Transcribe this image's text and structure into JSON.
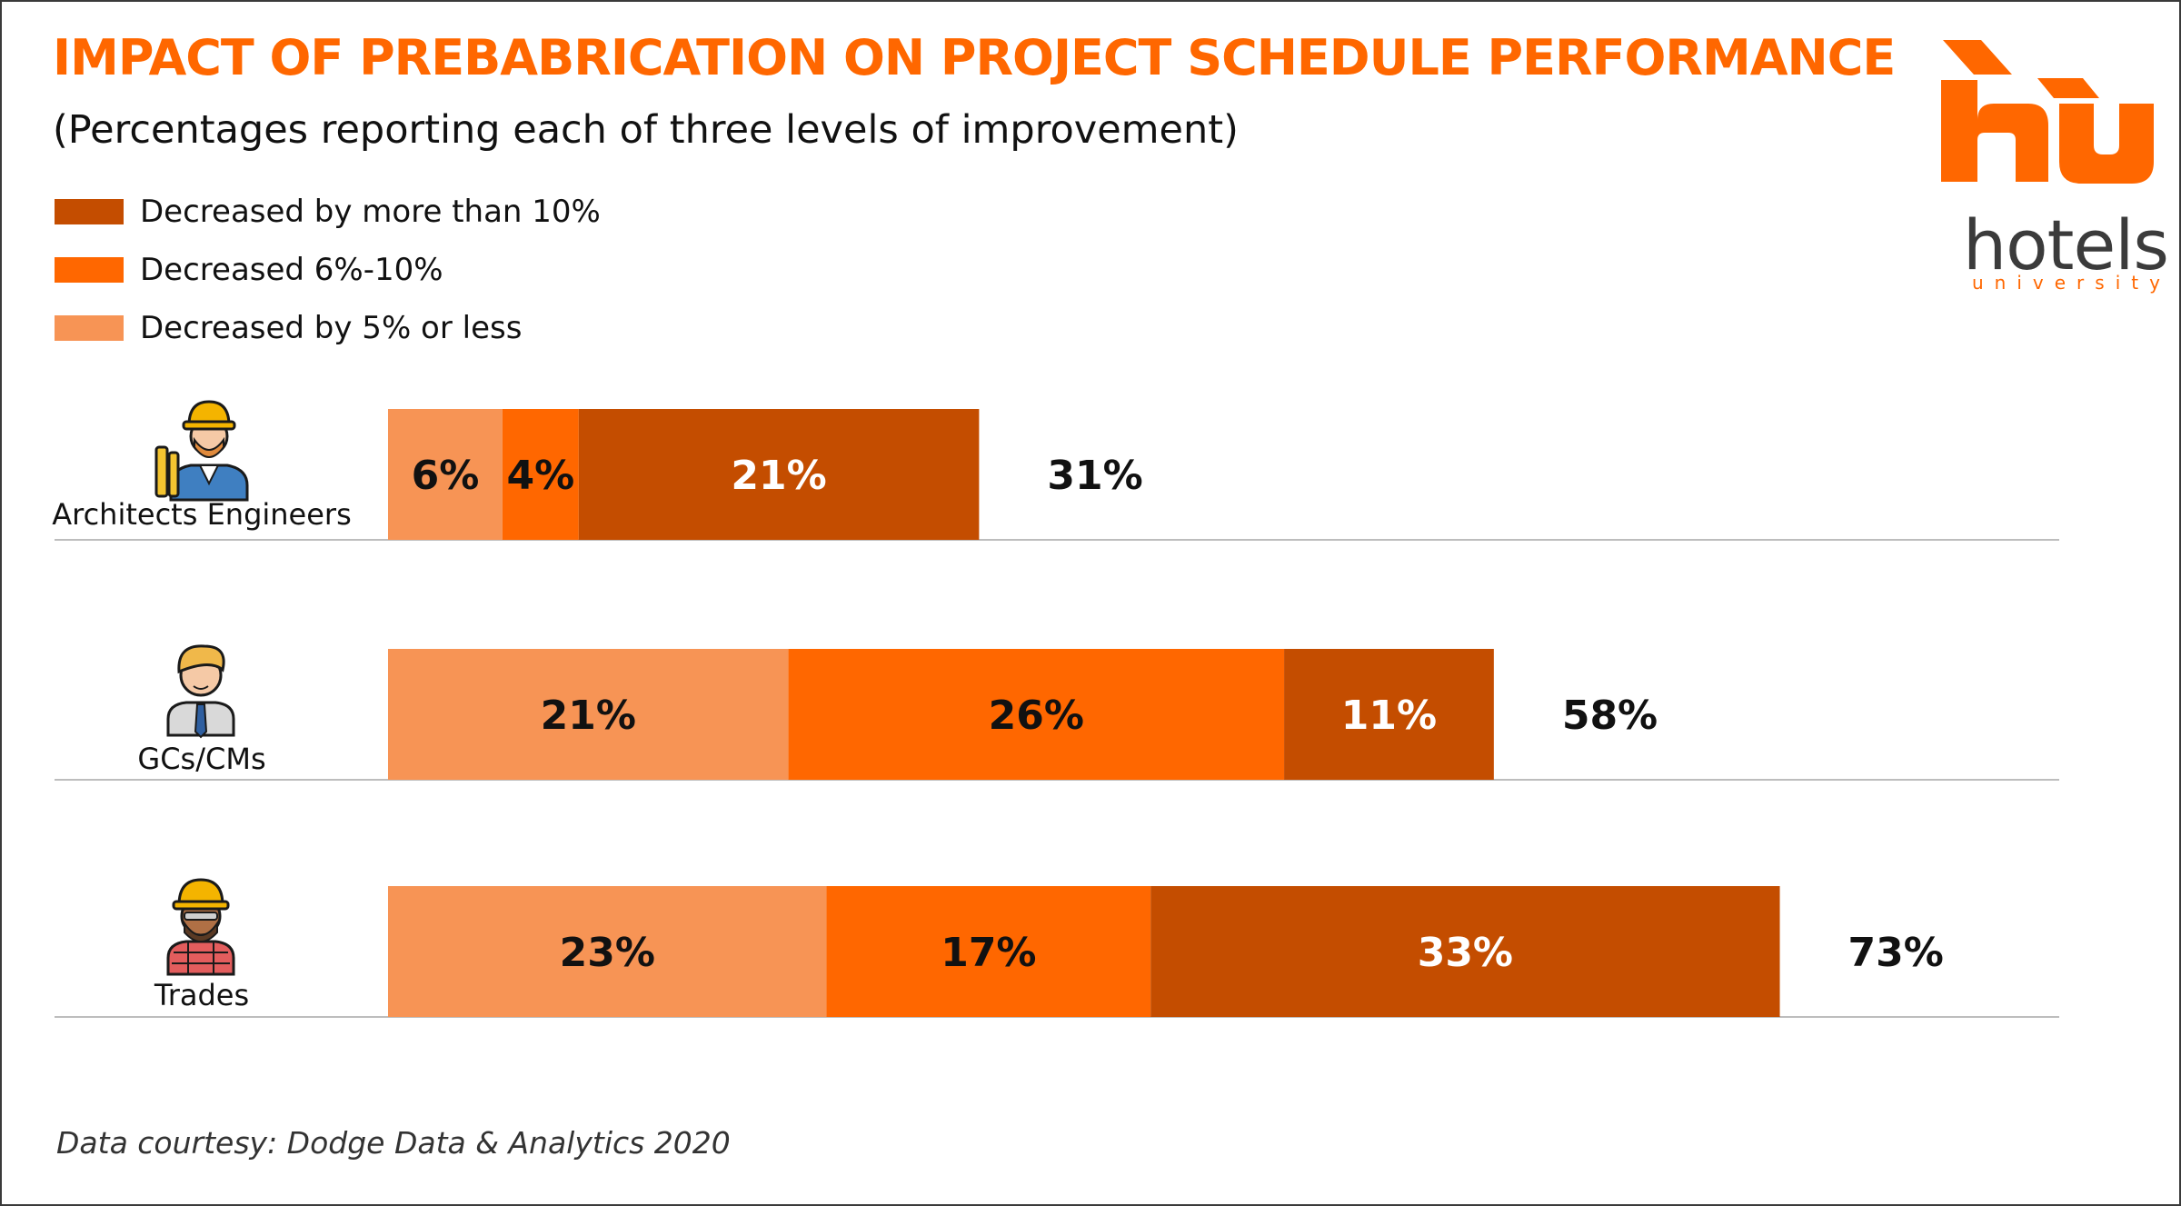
{
  "colors": {
    "accent": "#ff6700",
    "more_than_10": "#c44d00",
    "six_to_ten": "#ff6700",
    "five_or_less": "#f79455",
    "baseline": "#bdbdbd"
  },
  "logo": {
    "word": "hotels",
    "sub": "university"
  },
  "chart_data": {
    "type": "bar",
    "orientation": "horizontal",
    "stacked": true,
    "title": "IMPACT OF PREBABRICATION ON PROJECT SCHEDULE PERFORMANCE",
    "subtitle": "(Percentages reporting each of three levels of improvement)",
    "categories": [
      "Architects Engineers",
      "GCs/CMs",
      "Trades"
    ],
    "category_icons": [
      "engineer-icon",
      "manager-icon",
      "tradesperson-icon"
    ],
    "series": [
      {
        "name": "Decreased by 5% or less",
        "color": "#f79455",
        "values": [
          6,
          21,
          23
        ],
        "labels": [
          "6%",
          "21%",
          "23%"
        ]
      },
      {
        "name": "Decreased 6%-10%",
        "color": "#ff6700",
        "values": [
          4,
          26,
          17
        ],
        "labels": [
          "4%",
          "26%",
          "17%"
        ]
      },
      {
        "name": "Decreased by more than 10%",
        "color": "#c44d00",
        "values": [
          21,
          11,
          33
        ],
        "labels": [
          "21%",
          "11%",
          "33%"
        ]
      }
    ],
    "totals": [
      "31%",
      "58%",
      "73%"
    ],
    "legend": [
      {
        "name": "Decreased by more than 10%",
        "color": "#c44d00"
      },
      {
        "name": "Decreased 6%-10%",
        "color": "#ff6700"
      },
      {
        "name": "Decreased by 5% or less",
        "color": "#f79455"
      }
    ],
    "legend_position": "top-left",
    "xlim": [
      0,
      73
    ],
    "grid": false,
    "source": "Data courtesy: Dodge Data & Analytics 2020"
  }
}
